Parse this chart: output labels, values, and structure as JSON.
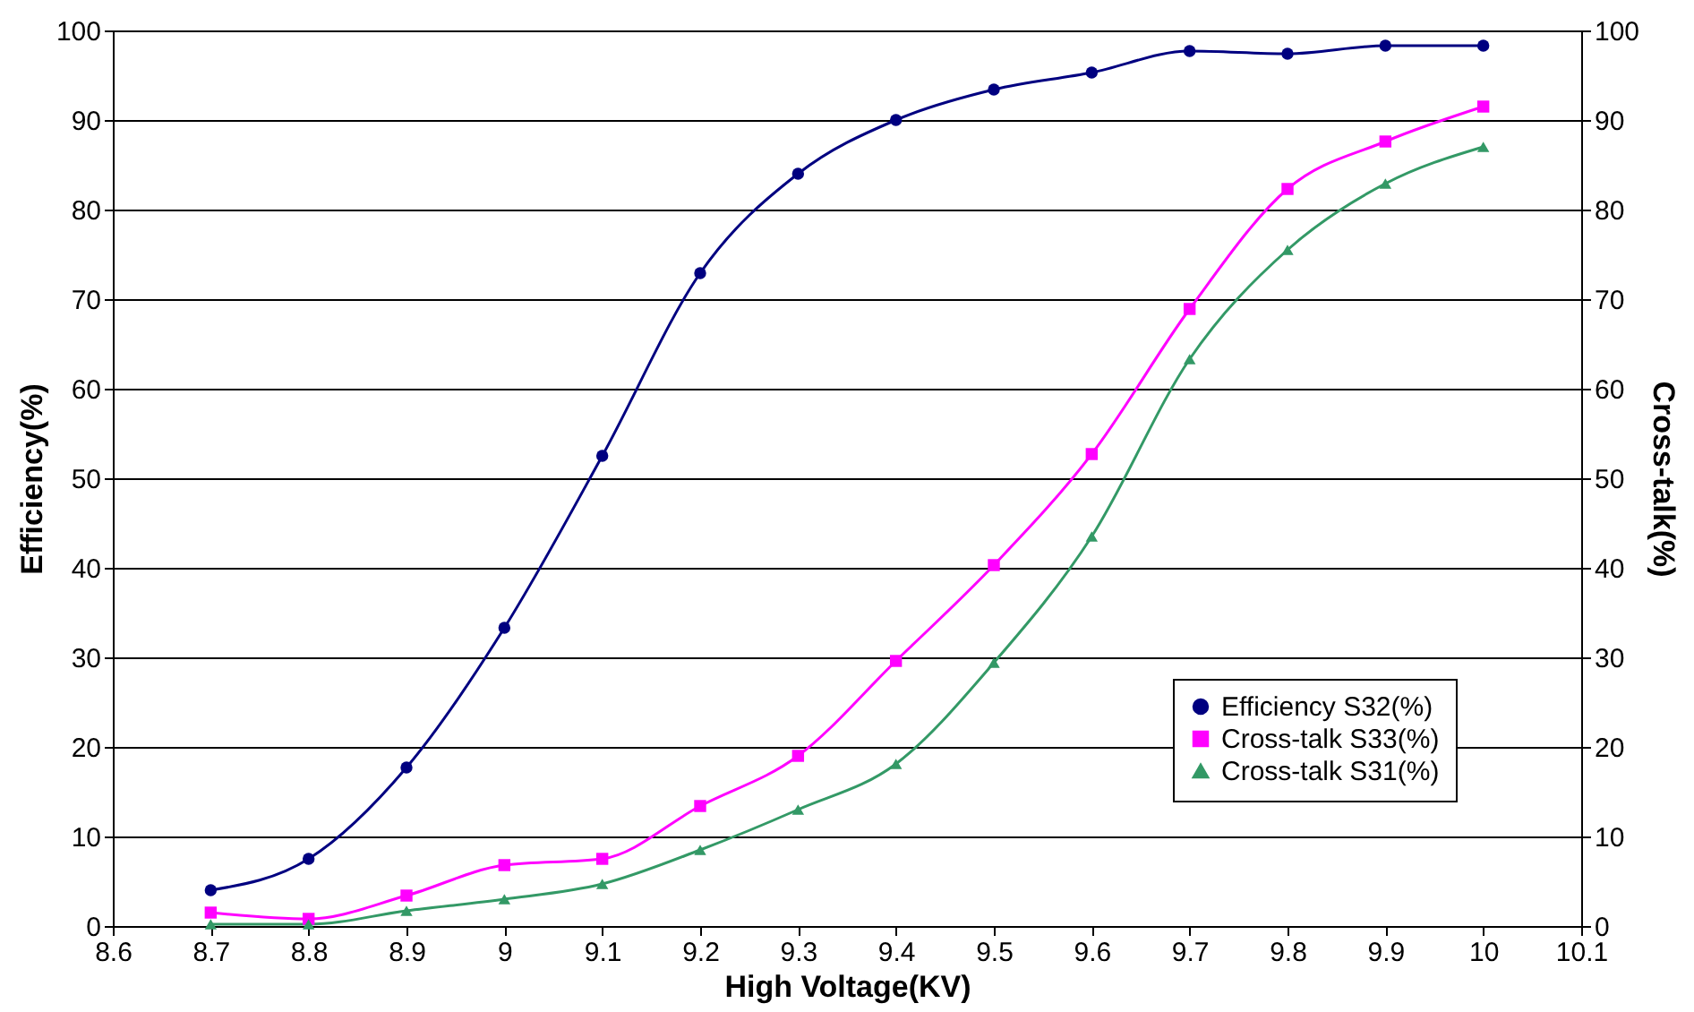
{
  "chart_data": {
    "type": "line",
    "xlabel": "High Voltage(KV)",
    "ylabel": "Efficiency(%)",
    "y2label": "Cross-talk(%)",
    "x": [
      8.7,
      8.8,
      8.9,
      9.0,
      9.1,
      9.2,
      9.3,
      9.4,
      9.5,
      9.6,
      9.7,
      9.8,
      9.9,
      10.0
    ],
    "xlim": [
      8.6,
      10.1
    ],
    "xticks": [
      8.6,
      8.7,
      8.8,
      8.9,
      9,
      9.1,
      9.2,
      9.3,
      9.4,
      9.5,
      9.6,
      9.7,
      9.8,
      9.9,
      10,
      10.1
    ],
    "ylim": [
      0,
      100
    ],
    "yticks": [
      0,
      10,
      20,
      30,
      40,
      50,
      60,
      70,
      80,
      90,
      100
    ],
    "y2lim": [
      0,
      100
    ],
    "y2ticks": [
      0,
      10,
      20,
      30,
      40,
      50,
      60,
      70,
      80,
      90,
      100
    ],
    "grid": "y",
    "legend": "bottom right",
    "line_style": "solid",
    "series": [
      {
        "name": "Efficiency  S32(%)",
        "color": "#000080",
        "marker": "circle",
        "values": [
          4.0,
          7.5,
          17.7,
          33.3,
          52.5,
          72.9,
          84.0,
          90.0,
          93.4,
          95.3,
          97.7,
          97.4,
          98.3,
          98.3
        ]
      },
      {
        "name": "Cross-talk S33(%)",
        "color": "#ff00ff",
        "marker": "square",
        "axis": "y2",
        "values": [
          1.5,
          0.8,
          3.4,
          6.8,
          7.5,
          13.4,
          19.0,
          29.6,
          40.3,
          52.7,
          68.9,
          82.3,
          87.6,
          91.5
        ]
      },
      {
        "name": "Cross-talk S31(%)",
        "color": "#339966",
        "marker": "triangle",
        "axis": "y2",
        "values": [
          0.2,
          0.2,
          1.7,
          3.0,
          4.7,
          8.5,
          13.0,
          18.1,
          29.4,
          43.5,
          63.3,
          75.5,
          82.9,
          87.0
        ]
      }
    ]
  }
}
